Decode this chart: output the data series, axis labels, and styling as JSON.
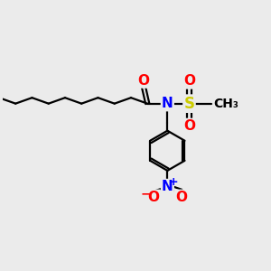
{
  "bg_color": "#ebebeb",
  "bond_color": "#000000",
  "bond_width": 1.6,
  "atom_colors": {
    "O": "#ff0000",
    "N": "#0000ff",
    "S": "#cccc00",
    "C": "#000000"
  },
  "font_size": 10,
  "fig_size": [
    3.0,
    3.0
  ],
  "dpi": 100
}
